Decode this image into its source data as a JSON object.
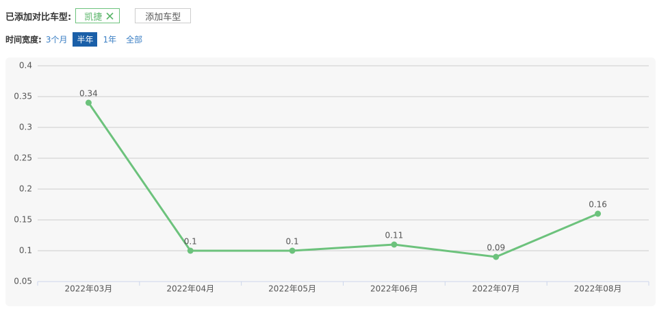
{
  "controls": {
    "added_label": "已添加对比车型:",
    "tag": "凯捷",
    "add_button": "添加车型",
    "time_label": "时间宽度:",
    "time_options": [
      "3个月",
      "半年",
      "1年",
      "全部"
    ],
    "selected": 1
  },
  "chart_data": {
    "type": "line",
    "categories": [
      "2022年03月",
      "2022年04月",
      "2022年05月",
      "2022年06月",
      "2022年07月",
      "2022年08月"
    ],
    "values": [
      0.34,
      0.1,
      0.1,
      0.11,
      0.09,
      0.16
    ],
    "color": "#6cc27c",
    "ylim": [
      0.05,
      0.4
    ],
    "yticks": [
      0.05,
      0.1,
      0.15,
      0.2,
      0.25,
      0.3,
      0.35,
      0.4
    ],
    "grid": true
  }
}
